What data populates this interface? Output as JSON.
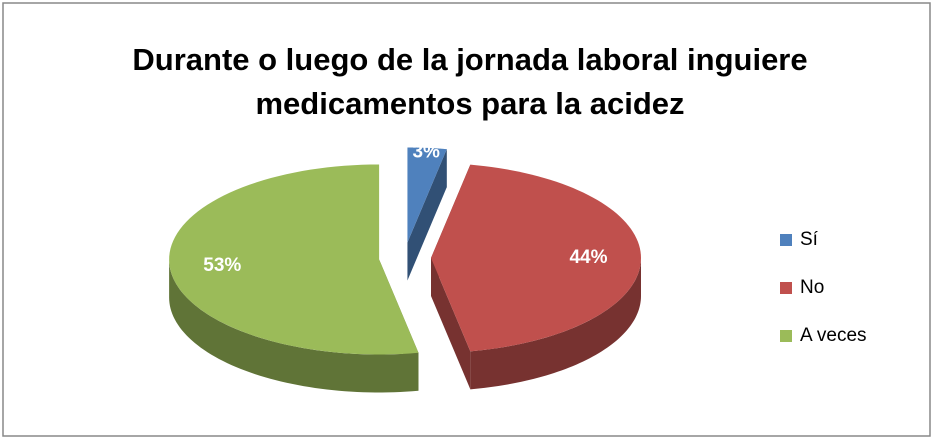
{
  "chart_data": {
    "type": "pie",
    "title": "Durante o luego de la jornada laboral inguiere medicamentos para la acidez",
    "categories": [
      "Sí",
      "No",
      "A veces"
    ],
    "values": [
      3,
      44,
      53
    ],
    "value_labels": [
      "3%",
      "44%",
      "53%"
    ],
    "colors": [
      "#4f81bd",
      "#c0504d",
      "#9bbb59"
    ],
    "legend": "right"
  }
}
